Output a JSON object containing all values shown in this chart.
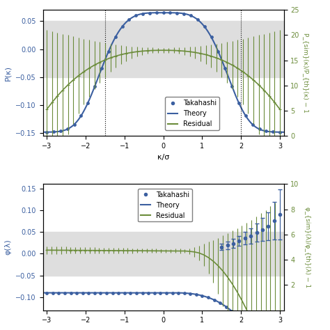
{
  "top_panel": {
    "ylabel_left": "P(κ)",
    "ylabel_right": "P_{sim}(κ)/P_{th}(κ) − 1",
    "xlabel": "κ/σ",
    "ylim_left": [
      -0.155,
      0.07
    ],
    "ylim_right": [
      0,
      25
    ],
    "xlim": [
      -3.1,
      3.1
    ],
    "yticks_left": [
      0.05,
      0.0,
      -0.05,
      -0.1,
      -0.15
    ],
    "yticks_right": [
      0,
      5,
      10,
      15,
      20,
      25
    ],
    "vlines": [
      -1.5,
      2.0
    ],
    "gray_band_dark": [
      -0.025,
      0.025
    ],
    "gray_band_light": [
      -0.05,
      0.05
    ],
    "legend_loc": "lower center"
  },
  "bottom_panel": {
    "ylabel_left": "φ(λ)",
    "ylabel_right": "φ_{sim}(λ)/φ_{th}(λ) − 1",
    "xlabel": "",
    "ylim_left": [
      -0.13,
      0.16
    ],
    "ylim_right": [
      0,
      10
    ],
    "xlim": [
      -3.1,
      3.1
    ],
    "yticks_left": [
      0.15,
      0.1,
      0.05,
      0.0,
      -0.05,
      -0.1
    ],
    "yticks_right": [
      2,
      4,
      6,
      8,
      10
    ],
    "gray_band_dark": [
      -0.025,
      0.025
    ],
    "gray_band_light": [
      -0.05,
      0.05
    ],
    "legend_loc": "upper left"
  },
  "colors": {
    "blue": "#3b5fa0",
    "green": "#6b8c3a",
    "dark_gray_band": "#c0c0c0",
    "light_gray_band": "#dedede"
  }
}
